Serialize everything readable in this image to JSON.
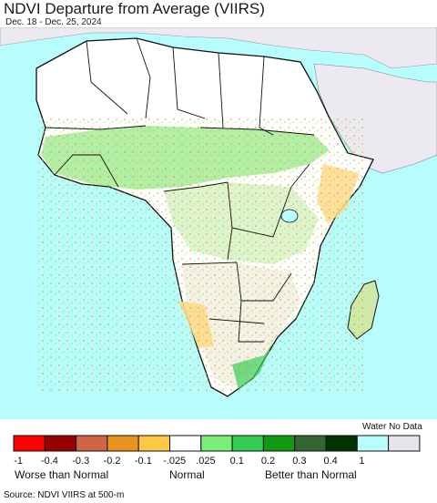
{
  "header": {
    "title": "NDVI Departure from Average (VIIRS)",
    "subtitle": "Dec. 18 - Dec. 25, 2024"
  },
  "colors": {
    "ocean": "#b8fdfd",
    "no_data_land": "#ede9f0",
    "desert": "#ffffff",
    "border": "#111111"
  },
  "legend": {
    "water_no_data_label": "Water No Data",
    "swatches": [
      {
        "color": "#ff0000"
      },
      {
        "color": "#990000"
      },
      {
        "color": "#cc6644"
      },
      {
        "color": "#e8931e"
      },
      {
        "color": "#ffc844"
      },
      {
        "color": "#ffffff"
      },
      {
        "color": "#78f078"
      },
      {
        "color": "#33cc55"
      },
      {
        "color": "#119911"
      },
      {
        "color": "#336633"
      },
      {
        "color": "#013301"
      },
      {
        "color": "#b8fdfd"
      },
      {
        "color": "#e8e4ec"
      }
    ],
    "tick_labels": [
      "-1",
      "-0.4",
      "-0.3",
      "-0.2",
      "-0.1",
      "-.025",
      ".025",
      "0.1",
      "0.2",
      "0.3",
      "0.4",
      "1"
    ],
    "worse_label": "Worse than Normal",
    "normal_label": "Normal",
    "better_label": "Better than Normal"
  },
  "footer": {
    "source": "Source: NDVI VIIRS at 500-m"
  }
}
